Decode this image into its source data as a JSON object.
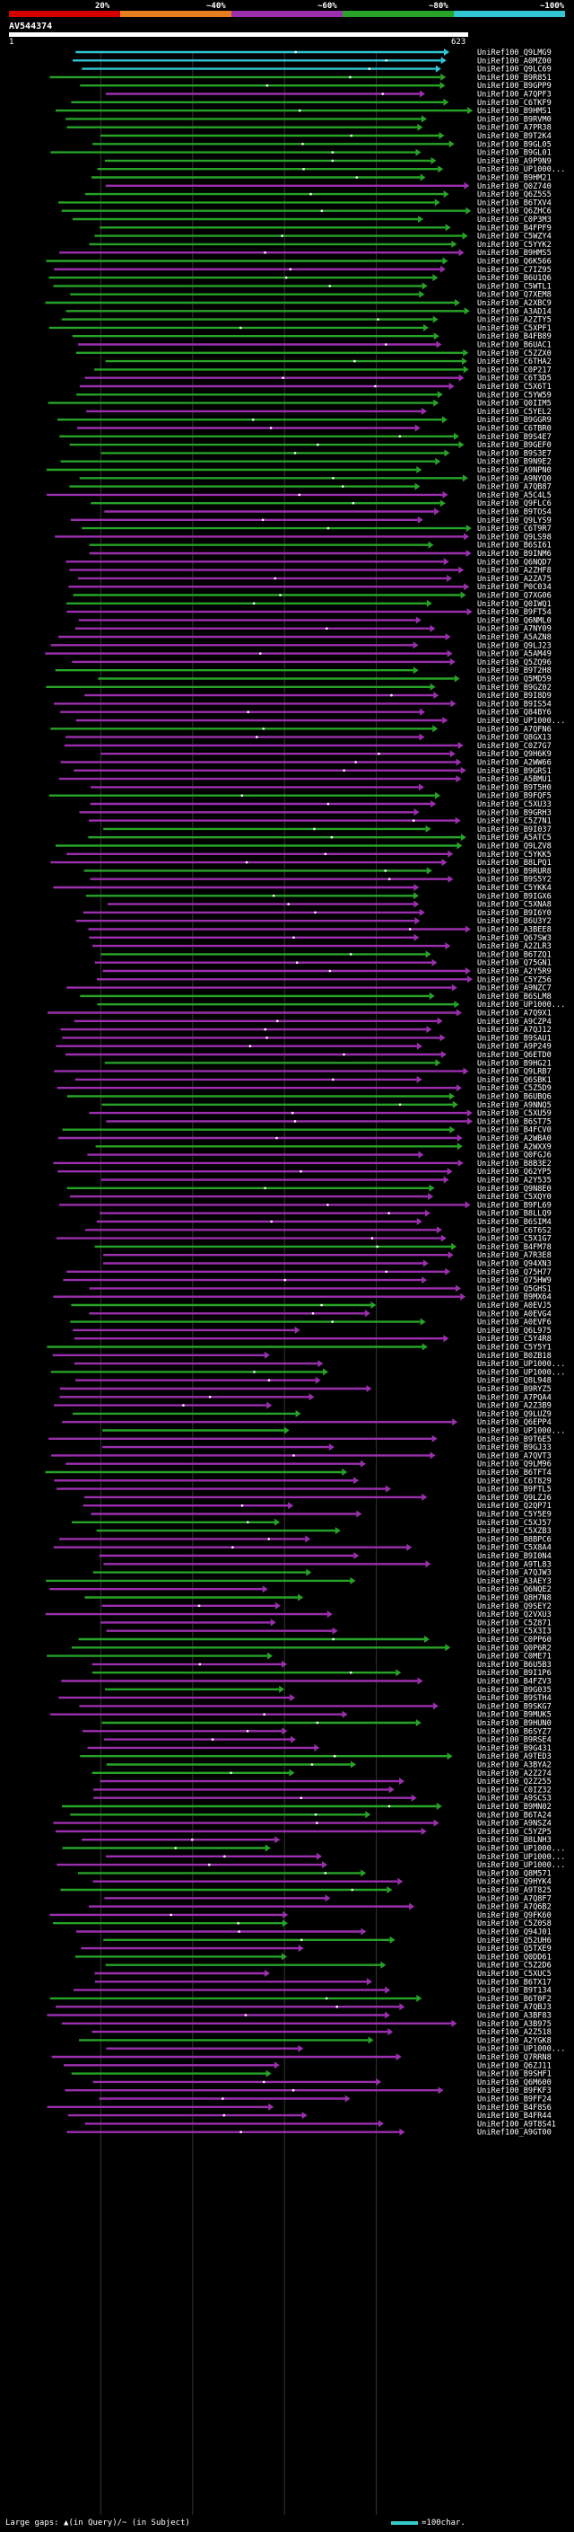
{
  "header": {
    "query_id": "AV544374",
    "ruler_start": "1",
    "ruler_end": "623"
  },
  "legend": {
    "labels": [
      "20%",
      "~40%",
      "~60%",
      "~80%",
      "~100%"
    ],
    "colors": [
      "#d40000",
      "#e87f1f",
      "#9b2fae",
      "#27a327",
      "#31c5d4"
    ]
  },
  "footer": {
    "text": "Large gaps: ▲(in Query)/~ (in Subject)",
    "scale_text": "=100char."
  },
  "chart_data": {
    "type": "alignment-overview",
    "query_length": 623,
    "subjects": [
      "UniRef100_Q9LMG9",
      "UniRef100_A0MZ00",
      "UniRef100_Q9LC69",
      "UniRef100_B9R851",
      "UniRef100_B9GPP9",
      "UniRef100_A7QPF3",
      "UniRef100_C6TKF9",
      "UniRef100_B9HMS1",
      "UniRef100_B9RVM0",
      "UniRef100_A7PR38",
      "UniRef100_B9T2K4",
      "UniRef100_B9GL05",
      "UniRef100_B9GL01",
      "UniRef100_A9P9N9",
      "UniRef100_UP1000...",
      "UniRef100_B9HM21",
      "UniRef100_Q0Z740",
      "UniRef100_Q6Z5S5",
      "UniRef100_B6TXV4",
      "UniRef100_Q6ZHC6",
      "UniRef100_C0P3M3",
      "UniRef100_B4FPF9",
      "UniRef100_C5WZY4",
      "UniRef100_C5YYK2",
      "UniRef100_B9HMS5",
      "UniRef100_Q6K566",
      "UniRef100_C7IZ95",
      "UniRef100_B6U1Q6",
      "UniRef100_C5WTL1",
      "UniRef100_Q7XEM8",
      "UniRef100_A2XBC9",
      "UniRef100_A3AD14",
      "UniRef100_A2ZTY5",
      "UniRef100_C5XPF1",
      "UniRef100_B4FB89",
      "UniRef100_B6UAC1",
      "UniRef100_C5ZZX0",
      "UniRef100_C6THA2",
      "UniRef100_C0P217",
      "UniRef100_C6T3D5",
      "UniRef100_C5X6T1",
      "UniRef100_C5YW59",
      "UniRef100_Q0IIM5",
      "UniRef100_C5YEL2",
      "UniRef100_B9GGR9",
      "UniRef100_C6TBR0",
      "UniRef100_B9S4E7",
      "UniRef100_B9GEF0",
      "UniRef100_B9S3E7",
      "UniRef100_B9N9E2",
      "UniRef100_A9NPN0",
      "UniRef100_A9NYQ0",
      "UniRef100_A7QB87",
      "UniRef100_A5C4L5",
      "UniRef100_Q9FLC6",
      "UniRef100_B9TOS4",
      "UniRef100_Q9LYS9",
      "UniRef100_C6T9R7",
      "UniRef100_Q9LS98",
      "UniRef100_B6SI61",
      "UniRef100_B9INM6",
      "UniRef100_Q6NQD7",
      "UniRef100_A2ZHF8",
      "UniRef100_A2ZA75",
      "UniRef100_P0C034",
      "UniRef100_Q7XG06",
      "UniRef100_Q0IWQ1",
      "UniRef100_B9FT54",
      "UniRef100_Q6NML0",
      "UniRef100_A7NY09",
      "UniRef100_A5AZN8",
      "UniRef100_Q9LJ23",
      "UniRef100_A5AM49",
      "UniRef100_Q5ZQ96",
      "UniRef100_B9T2H8",
      "UniRef100_Q5MD59",
      "UniRef100_B9GZ02",
      "UniRef100_B9I8D9",
      "UniRef100_B9IS54",
      "UniRef100_Q84BY6",
      "UniRef100_UP1000...",
      "UniRef100_A7QFN6",
      "UniRef100_Q8GX13",
      "UniRef100_C0Z7G7",
      "UniRef100_Q9H6K9",
      "UniRef100_A2WW66",
      "UniRef100_B9GRS1",
      "UniRef100_A5BMU1",
      "UniRef100_B9T5H0",
      "UniRef100_B9FQF5",
      "UniRef100_C5XU33",
      "UniRef100_B9GRH3",
      "UniRef100_C5Z7N1",
      "UniRef100_B9I037",
      "UniRef100_A5ATC5",
      "UniRef100_Q9LZV8",
      "UniRef100_C5YKK5",
      "UniRef100_B8LPQ1",
      "UniRef100_B9RUR8",
      "UniRef100_B9S5Y2",
      "UniRef100_C5YKK4",
      "UniRef100_B9IGX6",
      "UniRef100_C5XNA8",
      "UniRef100_B9I6Y0",
      "UniRef100_B6U3Y2",
      "UniRef100_A3BEE8",
      "UniRef100_Q67SW3",
      "UniRef100_A2ZLR3",
      "UniRef100_B6TZQ1",
      "UniRef100_Q75GN1",
      "UniRef100_A2Y5R9",
      "UniRef100_C5YZ56",
      "UniRef100_A9NZC7",
      "UniRef100_B6SLM8",
      "UniRef100_UP1000...",
      "UniRef100_A7Q9X1",
      "UniRef100_A9CZP4",
      "UniRef100_A7QJ12",
      "UniRef100_B9SAU1",
      "UniRef100_A9P249",
      "UniRef100_Q6ETD0",
      "UniRef100_B9HG21",
      "UniRef100_Q9LRB7",
      "UniRef100_Q6SBK1",
      "UniRef100_C5Z5D9",
      "UniRef100_B6UBQ6",
      "UniRef100_A9NNQ5",
      "UniRef100_C5XU59",
      "UniRef100_B6ST75",
      "UniRef100_B4FCV0",
      "UniRef100_A2WBA0",
      "UniRef100_A2WXX9",
      "UniRef100_Q0FGJ6",
      "UniRef100_B8B3E2",
      "UniRef100_Q62YP5",
      "UniRef100_A2Y535",
      "UniRef100_Q9N8E0",
      "UniRef100_C5XQY0",
      "UniRef100_B9FL69",
      "UniRef100_B8LLQ9",
      "UniRef100_B6SIM4",
      "UniRef100_C6T6S2",
      "UniRef100_C5X1G7",
      "UniRef100_B4FM78",
      "UniRef100_A7R3E8",
      "UniRef100_Q94XN3",
      "UniRef100_Q75H77",
      "UniRef100_Q75HW9",
      "UniRef100_Q5GHS1",
      "UniRef100_B9MX64",
      "UniRef100_A0EVJ5",
      "UniRef100_A0EVG4",
      "UniRef100_A0EVF6",
      "UniRef100_Q6L975",
      "UniRef100_C5Y4R8",
      "UniRef100_C5Y5Y1",
      "UniRef100_B0ZB18",
      "UniRef100_UP1000...",
      "UniRef100_UP1000...",
      "UniRef100_Q8L948",
      "UniRef100_B9RYZ5",
      "UniRef100_A7PQA4",
      "UniRef100_A2Z3B9",
      "UniRef100_Q9LUZ9",
      "UniRef100_Q6EPP4",
      "UniRef100_UP1000...",
      "UniRef100_B9T6E5",
      "UniRef100_B9GJ33",
      "UniRef100_A7QVT3",
      "UniRef100_Q9LM96",
      "UniRef100_B6TFT4",
      "UniRef100_C6T829",
      "UniRef100_B9FTL5",
      "UniRef100_Q9LZJ6",
      "UniRef100_Q2QP71",
      "UniRef100_C5Y5E9",
      "UniRef100_C5XJ57",
      "UniRef100_C5XZB3",
      "UniRef100_B8BPC6",
      "UniRef100_C5X8A4",
      "UniRef100_B9I0N4",
      "UniRef100_A9TL83",
      "UniRef100_A7QJW3",
      "UniRef100_A3AEY3",
      "UniRef100_Q6NQE2",
      "UniRef100_Q8H7N8",
      "UniRef100_Q9SEY2",
      "UniRef100_Q2VXU3",
      "UniRef100_C5Z871",
      "UniRef100_C5X3I3",
      "UniRef100_C0PP60",
      "UniRef100_Q0P6R2",
      "UniRef100_C0ME71",
      "UniRef100_B6U5B3",
      "UniRef100_B9I1P6",
      "UniRef100_B4FZV3",
      "UniRef100_B9G035",
      "UniRef100_B9STH4",
      "UniRef100_B9SKG7",
      "UniRef100_B9MUK5",
      "UniRef100_B9HUN0",
      "UniRef100_B6SYZ7",
      "UniRef100_B9RSE4",
      "UniRef100_B9G431",
      "UniRef100_A9TED3",
      "UniRef100_A3BYA2",
      "UniRef100_A2Z274",
      "UniRef100_Q2Z255",
      "UniRef100_C0IZ32",
      "UniRef100_A9SCS3",
      "UniRef100_B9MN02",
      "UniRef100_B6TA24",
      "UniRef100_A9NSZ4",
      "UniRef100_C5YZP5",
      "UniRef100_B8LNH3",
      "UniRef100_UP1000...",
      "UniRef100_UP1000...",
      "UniRef100_UP1000...",
      "UniRef100_Q8M571",
      "UniRef100_Q9HYK4",
      "UniRef100_A9T825",
      "UniRef100_A7Q8F7",
      "UniRef100_A7Q6B2",
      "UniRef100_Q9FK60",
      "UniRef100_C5Z0S8",
      "UniRef100_Q94J01",
      "UniRef100_Q52UH6",
      "UniRef100_Q5TXE9",
      "UniRef100_Q0DD61",
      "UniRef100_C5Z2D6",
      "UniRef100_C5XUC5",
      "UniRef100_B6TX17",
      "UniRef100_B9T134",
      "UniRef100_B6T0F2",
      "UniRef100_A7QBJ3",
      "UniRef100_A3BF83",
      "UniRef100_A3B975",
      "UniRef100_A2Z518",
      "UniRef100_A2YGK8",
      "UniRef100_UP1000...",
      "UniRef100_Q7RRN8",
      "UniRef100_Q6ZJ11",
      "UniRef100_B9SHF1",
      "UniRef100_Q6M600",
      "UniRef100_B9FKF3",
      "UniRef100_B9FF24",
      "UniRef100_B4F8S6",
      "UniRef100_B4FR44",
      "UniRef100_A9T8S41",
      "UniRef100_A9GT00"
    ]
  }
}
